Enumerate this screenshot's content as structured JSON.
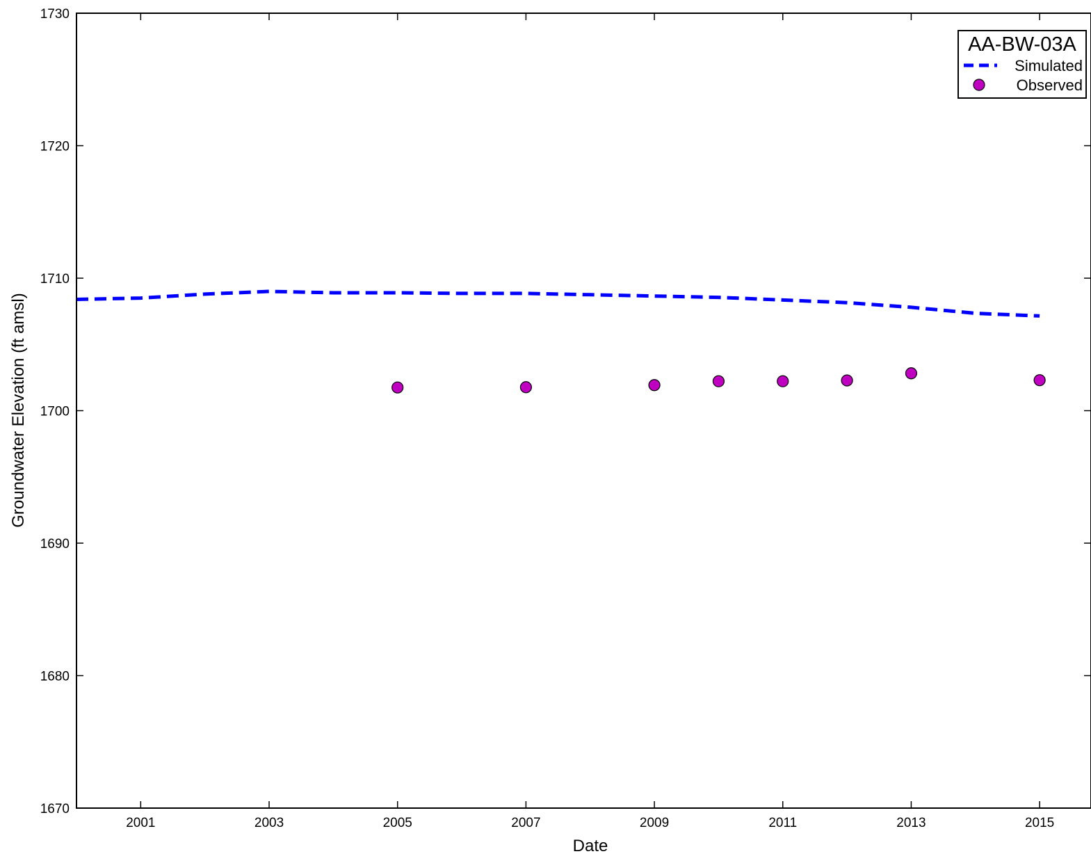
{
  "chart_data": {
    "type": "line",
    "xlabel": "Date",
    "ylabel": "Groundwater Elevation (ft amsl)",
    "xlim": [
      2000.0,
      2015.8
    ],
    "ylim": [
      1670,
      1730
    ],
    "x_ticks": [
      2001,
      2003,
      2005,
      2007,
      2009,
      2011,
      2013,
      2015
    ],
    "y_ticks": [
      1670,
      1680,
      1690,
      1700,
      1710,
      1720,
      1730
    ],
    "grid": false,
    "legend": {
      "title": "AA-BW-03A",
      "placement": "top-right",
      "entries": [
        "Simulated",
        "Observed"
      ]
    },
    "series": [
      {
        "name": "Simulated",
        "style": "dashed-line",
        "color": "#0000ff",
        "x": [
          2000.0,
          2001.0,
          2002.0,
          2003.0,
          2004.0,
          2005.0,
          2006.0,
          2007.0,
          2008.0,
          2009.0,
          2010.0,
          2011.0,
          2012.0,
          2013.0,
          2014.0,
          2015.0
        ],
        "y": [
          1708.4,
          1708.5,
          1708.8,
          1709.0,
          1708.9,
          1708.9,
          1708.85,
          1708.85,
          1708.75,
          1708.65,
          1708.55,
          1708.35,
          1708.15,
          1707.8,
          1707.35,
          1707.15
        ]
      },
      {
        "name": "Observed",
        "style": "markers",
        "color": "#c000c0",
        "x": [
          2005.0,
          2007.0,
          2009.0,
          2010.0,
          2011.0,
          2012.0,
          2013.0,
          2015.0
        ],
        "y": [
          1701.75,
          1701.77,
          1701.93,
          1702.22,
          1702.22,
          1702.28,
          1702.82,
          1702.3
        ]
      }
    ]
  }
}
